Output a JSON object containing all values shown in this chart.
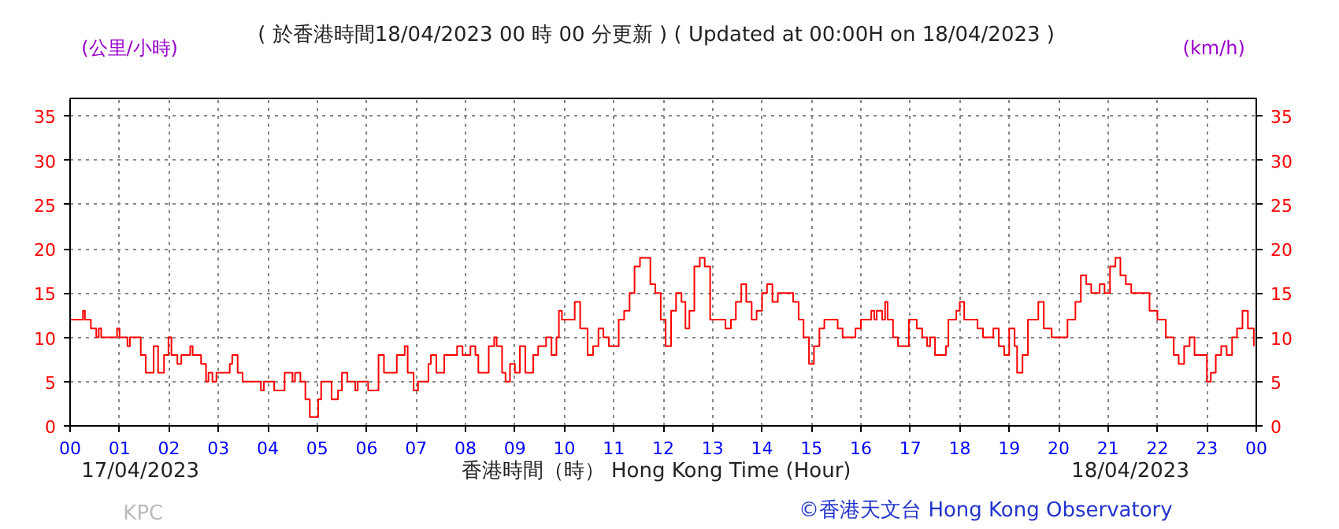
{
  "chart_data": {
    "type": "step",
    "title": "( 於香港時間18/04/2023 00 時 00 分更新 ) ( Updated at 00:00H on 18/04/2023 )",
    "ylabel": "(公里/小時)",
    "y2label": "(km/h)",
    "xlabel": "香港時間（時） Hong Kong Time (Hour)",
    "annotations": [
      "17/04/2023",
      "18/04/2023",
      "KPC",
      "©香港天文台 Hong Kong Observatory"
    ],
    "xlim": [
      0,
      24
    ],
    "ylim": [
      0,
      37
    ],
    "y2lim": [
      0,
      37
    ],
    "xticks": [
      {
        "value": 0,
        "label": "00"
      },
      {
        "value": 1,
        "label": "01"
      },
      {
        "value": 2,
        "label": "02"
      },
      {
        "value": 3,
        "label": "03"
      },
      {
        "value": 4,
        "label": "04"
      },
      {
        "value": 5,
        "label": "05"
      },
      {
        "value": 6,
        "label": "06"
      },
      {
        "value": 7,
        "label": "07"
      },
      {
        "value": 8,
        "label": "08"
      },
      {
        "value": 9,
        "label": "09"
      },
      {
        "value": 10,
        "label": "10"
      },
      {
        "value": 11,
        "label": "11"
      },
      {
        "value": 12,
        "label": "12"
      },
      {
        "value": 13,
        "label": "13"
      },
      {
        "value": 14,
        "label": "14"
      },
      {
        "value": 15,
        "label": "15"
      },
      {
        "value": 16,
        "label": "16"
      },
      {
        "value": 17,
        "label": "17"
      },
      {
        "value": 18,
        "label": "18"
      },
      {
        "value": 19,
        "label": "19"
      },
      {
        "value": 20,
        "label": "20"
      },
      {
        "value": 21,
        "label": "21"
      },
      {
        "value": 22,
        "label": "22"
      },
      {
        "value": 23,
        "label": "23"
      },
      {
        "value": 24,
        "label": "00"
      }
    ],
    "yticks": [
      0,
      5,
      10,
      15,
      20,
      25,
      30,
      35
    ],
    "y2ticks": [
      0,
      5,
      10,
      15,
      20,
      25,
      30,
      35
    ],
    "grid": true,
    "line_style": "solid",
    "series": [
      {
        "color": "#ff0000",
        "x": [
          0,
          0.26,
          0.3,
          0.42,
          0.53,
          0.58,
          0.63,
          0.95,
          1.0,
          1.16,
          1.21,
          1.38,
          1.43,
          1.53,
          1.69,
          1.78,
          1.9,
          1.99,
          2.05,
          2.17,
          2.25,
          2.43,
          2.48,
          2.65,
          2.75,
          2.8,
          2.88,
          2.96,
          3.23,
          3.28,
          3.39,
          3.49,
          3.86,
          3.92,
          4.13,
          4.34,
          4.5,
          4.55,
          4.66,
          4.76,
          4.85,
          4.97,
          5.02,
          5.08,
          5.29,
          5.42,
          5.5,
          5.61,
          5.77,
          5.82,
          6.03,
          6.24,
          6.35,
          6.61,
          6.77,
          6.83,
          6.95,
          7.04,
          7.25,
          7.3,
          7.41,
          7.57,
          7.83,
          7.94,
          8.1,
          8.2,
          8.26,
          8.47,
          8.58,
          8.63,
          8.74,
          8.81,
          8.9,
          9.0,
          9.1,
          9.21,
          9.37,
          9.47,
          9.63,
          9.74,
          9.84,
          9.89,
          9.95,
          10.21,
          10.32,
          10.47,
          10.58,
          10.69,
          10.79,
          10.9,
          11.1,
          11.21,
          11.32,
          11.42,
          11.53,
          11.74,
          11.84,
          11.95,
          12.05,
          12.16,
          12.26,
          12.37,
          12.45,
          12.53,
          12.63,
          12.74,
          12.84,
          12.95,
          13.26,
          13.37,
          13.47,
          13.58,
          13.68,
          13.79,
          13.89,
          14.0,
          14.1,
          14.21,
          14.32,
          14.63,
          14.74,
          14.84,
          14.95,
          15.05,
          15.16,
          15.26,
          15.53,
          15.63,
          15.89,
          16.0,
          16.21,
          16.27,
          16.32,
          16.43,
          16.49,
          16.54,
          16.65,
          16.75,
          16.97,
          17.13,
          17.24,
          17.34,
          17.4,
          17.5,
          17.72,
          17.77,
          17.93,
          18.0,
          18.09,
          18.36,
          18.47,
          18.68,
          18.79,
          18.9,
          19.0,
          19.11,
          19.16,
          19.27,
          19.38,
          19.59,
          19.7,
          19.86,
          20.18,
          20.34,
          20.45,
          20.56,
          20.66,
          20.83,
          20.93,
          21.04,
          21.15,
          21.25,
          21.36,
          21.47,
          21.84,
          22.0,
          22.17,
          22.33,
          22.43,
          22.54,
          22.65,
          22.75,
          23.0,
          23.08,
          23.18,
          23.29,
          23.4,
          23.51,
          23.61,
          23.72,
          23.83,
          23.95
        ],
        "values": [
          12,
          13,
          12,
          11,
          10,
          11,
          10,
          11,
          10,
          9,
          10,
          10,
          8,
          6,
          9,
          6,
          8,
          10,
          8,
          7,
          8,
          9,
          8,
          7,
          5,
          6,
          5,
          6,
          7,
          8,
          6,
          5,
          4,
          5,
          4,
          6,
          5,
          6,
          5,
          3,
          1,
          1,
          3,
          5,
          3,
          4,
          6,
          5,
          4,
          5,
          4,
          8,
          6,
          8,
          9,
          6,
          4,
          5,
          7,
          8,
          6,
          8,
          9,
          8,
          9,
          8,
          6,
          9,
          10,
          9,
          6,
          5,
          7,
          6,
          9,
          6,
          8,
          9,
          10,
          8,
          10,
          13,
          12,
          14,
          11,
          8,
          9,
          11,
          10,
          9,
          12,
          13,
          15,
          18,
          19,
          16,
          15,
          12,
          9,
          13,
          15,
          14,
          11,
          13,
          18,
          19,
          18,
          12,
          11,
          12,
          14,
          16,
          14,
          12,
          13,
          15,
          16,
          14,
          15,
          14,
          12,
          10,
          7,
          9,
          11,
          12,
          11,
          10,
          11,
          12,
          13,
          12,
          13,
          12,
          14,
          12,
          10,
          9,
          12,
          11,
          10,
          9,
          10,
          8,
          9,
          12,
          13,
          14,
          12,
          11,
          10,
          11,
          9,
          8,
          11,
          9,
          6,
          8,
          12,
          14,
          11,
          10,
          12,
          14,
          17,
          16,
          15,
          16,
          15,
          18,
          19,
          17,
          16,
          15,
          13,
          12,
          10,
          8,
          7,
          9,
          10,
          8,
          5,
          6,
          8,
          9,
          8,
          10,
          11,
          13,
          11,
          9
        ]
      }
    ]
  }
}
